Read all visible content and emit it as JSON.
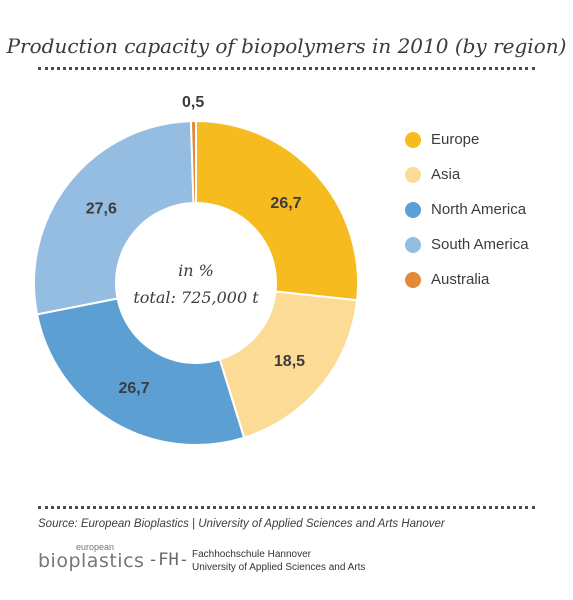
{
  "title": "Production capacity of biopolymers in 2010 (by region)",
  "center_line1": "in %",
  "center_line2": "total:  725,000 t",
  "source": "Source: European Bioplastics | University of Applied Sciences and Arts Hanover",
  "logos": {
    "eb_small": "european",
    "eb_main": "bioplastics",
    "fh_mark": "-FH-",
    "fh_line1": "Fachhochschule Hannover",
    "fh_line2": "University of Applied Sciences and Arts"
  },
  "chart_data": {
    "type": "pie",
    "donut": true,
    "labels": [
      "Europe",
      "Asia",
      "North America",
      "South America",
      "Australia"
    ],
    "values": [
      26.7,
      18.5,
      26.7,
      27.6,
      0.5
    ],
    "value_labels": [
      "26,7",
      "18,5",
      "26,7",
      "27,6",
      "0,5"
    ],
    "colors": [
      "#f6bb1e",
      "#fcdb97",
      "#5c9fd2",
      "#95bde2",
      "#e2893a"
    ],
    "legend_position": "right"
  }
}
